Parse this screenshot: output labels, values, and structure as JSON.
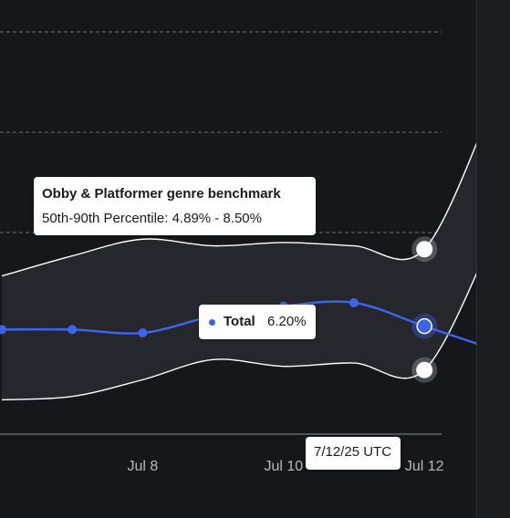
{
  "colors": {
    "background": "#16171a",
    "band_fill": "#26272c",
    "gridline": "#6a6c72",
    "axis_line": "#8a8c92",
    "benchmark_line": "#ffffff",
    "total_line": "#3d63ea"
  },
  "x_axis": {
    "tick_labels": [
      "Jul 8",
      "Jul 10",
      "Jul 12"
    ]
  },
  "tooltips": {
    "benchmark": {
      "title": "Obby & Platformer genre benchmark",
      "range_text": "50th-90th Percentile: 4.89% - 8.50%"
    },
    "total": {
      "label": "Total",
      "value": "6.20%"
    },
    "date": {
      "text": "7/12/25 UTC"
    }
  },
  "chart_data": {
    "type": "line",
    "x": [
      "Jul 6",
      "Jul 7",
      "Jul 8",
      "Jul 9",
      "Jul 10",
      "Jul 11",
      "Jul 12",
      "Jul 13"
    ],
    "series": [
      {
        "name": "Total",
        "values": [
          6.1,
          6.1,
          6.0,
          6.5,
          6.8,
          6.9,
          6.2,
          5.5
        ]
      }
    ],
    "benchmark_band": {
      "name": "Obby & Platformer genre benchmark",
      "upper_90th": [
        7.7,
        8.3,
        8.8,
        8.6,
        8.7,
        8.6,
        8.5,
        13.0
      ],
      "lower_50th": [
        4.0,
        4.1,
        4.6,
        5.2,
        5.0,
        5.1,
        4.89,
        9.0
      ]
    },
    "hovered_point": {
      "x": "Jul 12",
      "total": 6.2,
      "p50": 4.89,
      "p90": 8.5
    }
  }
}
